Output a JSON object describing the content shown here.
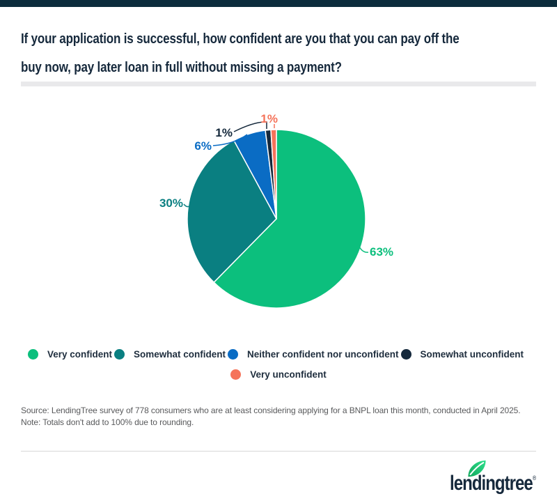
{
  "title": {
    "lines": [
      "If your application is successful, how confident are you that you can pay off the",
      "buy now, pay later loan in full without missing a payment?"
    ]
  },
  "chart_data": {
    "type": "pie",
    "title": "If your application is successful, how confident are you that you can pay off the buy now, pay later loan in full without missing a payment?",
    "slices": [
      {
        "label": "Very confident",
        "value": 63,
        "color": "#0cbf7d"
      },
      {
        "label": "Somewhat confident",
        "value": 30,
        "color": "#0a7f81"
      },
      {
        "label": "Neither confident nor unconfident",
        "value": 6,
        "color": "#0a6cc4"
      },
      {
        "label": "Somewhat unconfident",
        "value": 1,
        "color": "#15293c"
      },
      {
        "label": "Very unconfident",
        "value": 1,
        "color": "#f5735a"
      }
    ],
    "start_angle_deg": -90,
    "direction": "clockwise",
    "value_suffix": "%",
    "legend_rows": [
      4,
      1
    ],
    "note": "Totals don't add to 100% due to rounding."
  },
  "source": {
    "lines": [
      "Source: LendingTree survey of 778 consumers who are at least considering applying for a BNPL loan this month, conducted in April 2025.",
      "Note: Totals don't add to 100% due to rounding."
    ]
  },
  "logo": {
    "text": "lendingtree",
    "registered": "®"
  },
  "colors": {
    "accent_bar": "#0c2c3c",
    "title_text": "#16293c",
    "legend_text": "#1e2d3d",
    "source_text": "#58595b",
    "title_rule": "#e9e9eb",
    "leaf_dark": "#12a75c",
    "leaf_light": "#2ee08d"
  }
}
